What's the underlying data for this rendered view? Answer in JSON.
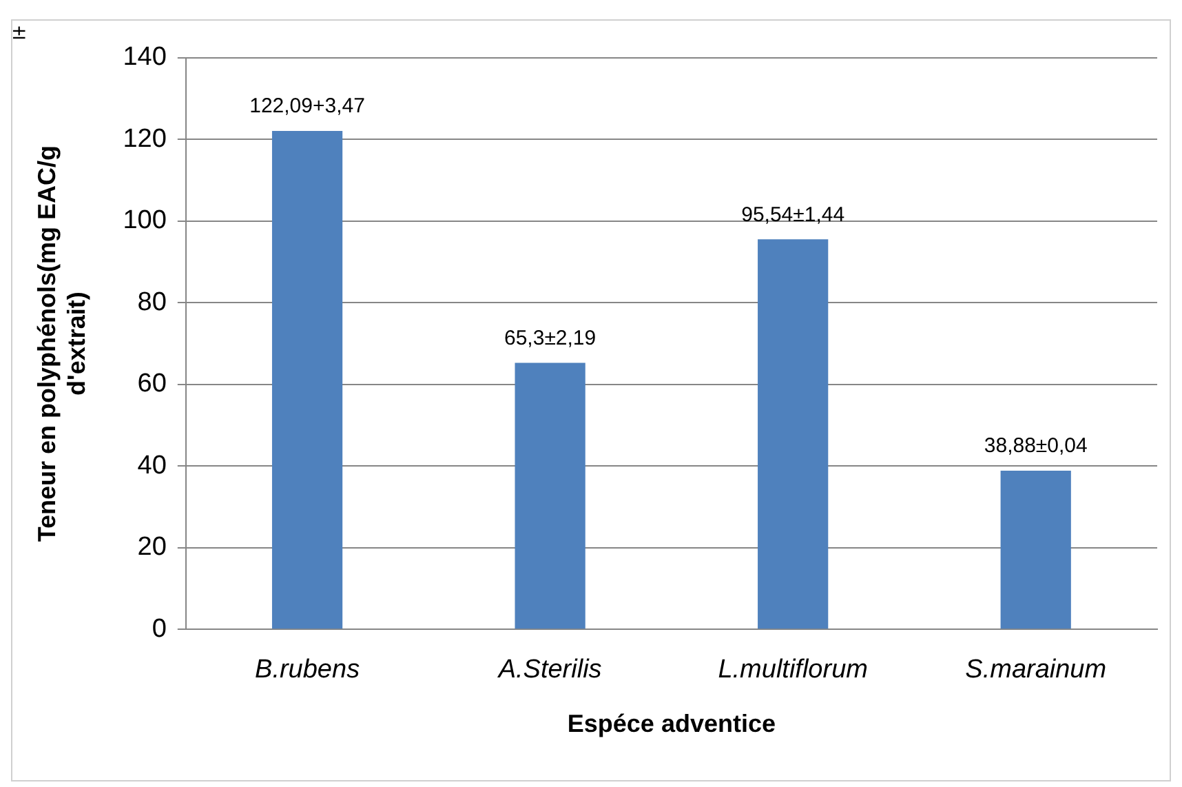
{
  "chart_data": {
    "type": "bar",
    "xlabel": "Espéce adventice",
    "ylabel": "Teneur en polyphénols(mg EAC/g d'extrait)",
    "categories": [
      "B.rubens",
      "A.Sterilis",
      "L.multiflorum",
      "S.marainum"
    ],
    "values": [
      122.09,
      65.3,
      95.54,
      38.88
    ],
    "value_labels": [
      "122,09+3,47",
      "65,3±2,19",
      "95,54±1,44",
      "38,88±0,04"
    ],
    "color": "#4f81bd",
    "ylim": [
      0,
      140
    ],
    "yticks": [
      0,
      20,
      40,
      60,
      80,
      100,
      120,
      140
    ],
    "grid": "y",
    "legend": false,
    "annotations": [
      "±"
    ]
  }
}
